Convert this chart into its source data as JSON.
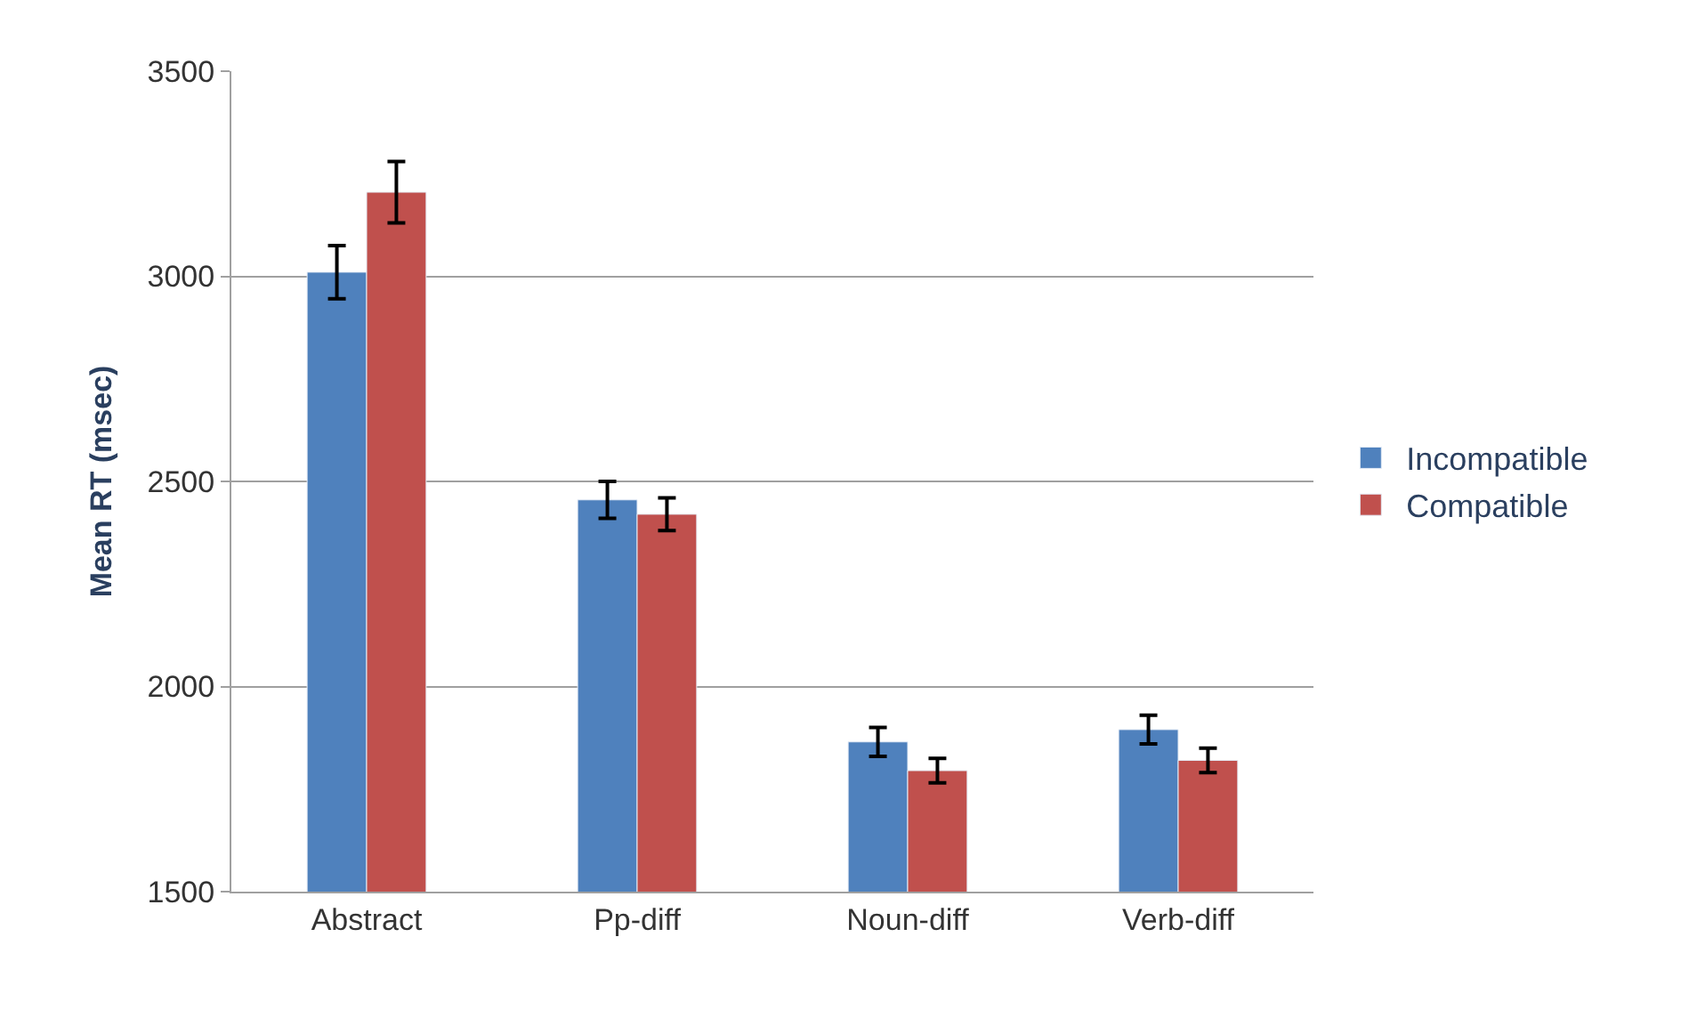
{
  "chart_data": {
    "type": "bar",
    "ylabel": "Mean RT (msec)",
    "categories": [
      "Abstract",
      "Pp-diff",
      "Noun-diff",
      "Verb-diff"
    ],
    "series": [
      {
        "name": "Incompatible",
        "color": "#4f81bd",
        "values": [
          3010,
          2455,
          1865,
          1895
        ],
        "errors": [
          65,
          45,
          35,
          35
        ]
      },
      {
        "name": "Compatible",
        "color": "#c0504d",
        "values": [
          3205,
          2420,
          1795,
          1820
        ],
        "errors": [
          75,
          40,
          30,
          30
        ]
      }
    ],
    "ylim": [
      1500,
      3500
    ],
    "yticks": [
      1500,
      2000,
      2500,
      3000,
      3500
    ],
    "grid": "y",
    "legend": "right"
  }
}
